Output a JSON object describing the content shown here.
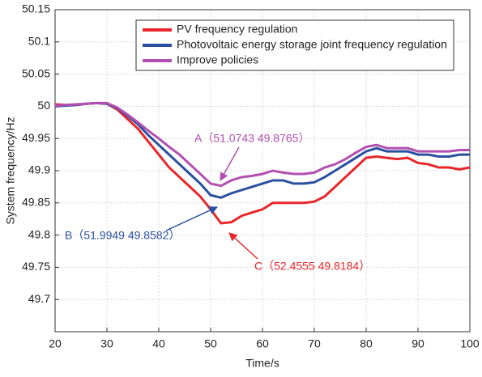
{
  "chart_data": {
    "type": "line",
    "x_label": "Time/s",
    "y_label": "System frequency/Hz",
    "x": [
      20,
      22,
      24,
      26,
      28,
      30,
      32,
      34,
      36,
      38,
      40,
      42,
      44,
      46,
      48,
      50,
      52,
      54,
      56,
      58,
      60,
      62,
      64,
      66,
      68,
      70,
      72,
      74,
      76,
      78,
      80,
      82,
      84,
      86,
      88,
      90,
      92,
      94,
      96,
      98,
      100
    ],
    "series": [
      {
        "name": "PV frequency regulation",
        "color": "#e8262a",
        "values": [
          50.003,
          50.002,
          50.002,
          50.004,
          50.005,
          50.004,
          49.995,
          49.98,
          49.965,
          49.945,
          49.925,
          49.905,
          49.89,
          49.875,
          49.86,
          49.84,
          49.8184,
          49.82,
          49.83,
          49.835,
          49.84,
          49.85,
          49.85,
          49.85,
          49.85,
          49.852,
          49.86,
          49.875,
          49.89,
          49.905,
          49.92,
          49.922,
          49.92,
          49.918,
          49.92,
          49.912,
          49.91,
          49.905,
          49.905,
          49.902,
          49.905
        ]
      },
      {
        "name": "Photovoltaic energy storage joint frequency regulation",
        "color": "#2a4fa0",
        "values": [
          50.0,
          50.001,
          50.002,
          50.004,
          50.005,
          50.004,
          49.997,
          49.985,
          49.972,
          49.955,
          49.94,
          49.925,
          49.91,
          49.895,
          49.88,
          49.862,
          49.8582,
          49.865,
          49.87,
          49.875,
          49.88,
          49.885,
          49.885,
          49.88,
          49.88,
          49.882,
          49.89,
          49.9,
          49.91,
          49.92,
          49.93,
          49.935,
          49.93,
          49.93,
          49.93,
          49.925,
          49.925,
          49.922,
          49.922,
          49.925,
          49.925
        ]
      },
      {
        "name": "Improve policies",
        "color": "#b24fb0",
        "values": [
          50.001,
          50.002,
          50.003,
          50.004,
          50.005,
          50.005,
          49.998,
          49.987,
          49.975,
          49.962,
          49.95,
          49.937,
          49.925,
          49.91,
          49.895,
          49.88,
          49.8765,
          49.885,
          49.89,
          49.892,
          49.895,
          49.9,
          49.897,
          49.895,
          49.895,
          49.897,
          49.905,
          49.91,
          49.918,
          49.928,
          49.937,
          49.94,
          49.935,
          49.935,
          49.935,
          49.93,
          49.93,
          49.93,
          49.93,
          49.932,
          49.932
        ]
      }
    ],
    "annotations": [
      {
        "text": "A（51.0743 49.8765）",
        "color": "#b24fb0"
      },
      {
        "text": "B（51.9949 49.8582）",
        "color": "#2a4fa0"
      },
      {
        "text": "C（52.4555 49.8184）",
        "color": "#e8262a"
      }
    ],
    "xlim": [
      20,
      100
    ],
    "xticks": [
      20,
      30,
      40,
      50,
      60,
      70,
      80,
      90,
      100
    ],
    "ylim": [
      49.65,
      50.15
    ],
    "yticks": [
      49.7,
      49.75,
      49.8,
      49.85,
      49.9,
      49.95,
      50,
      50.05,
      50.1,
      50.15
    ],
    "grid": true,
    "legend": "upper right"
  }
}
